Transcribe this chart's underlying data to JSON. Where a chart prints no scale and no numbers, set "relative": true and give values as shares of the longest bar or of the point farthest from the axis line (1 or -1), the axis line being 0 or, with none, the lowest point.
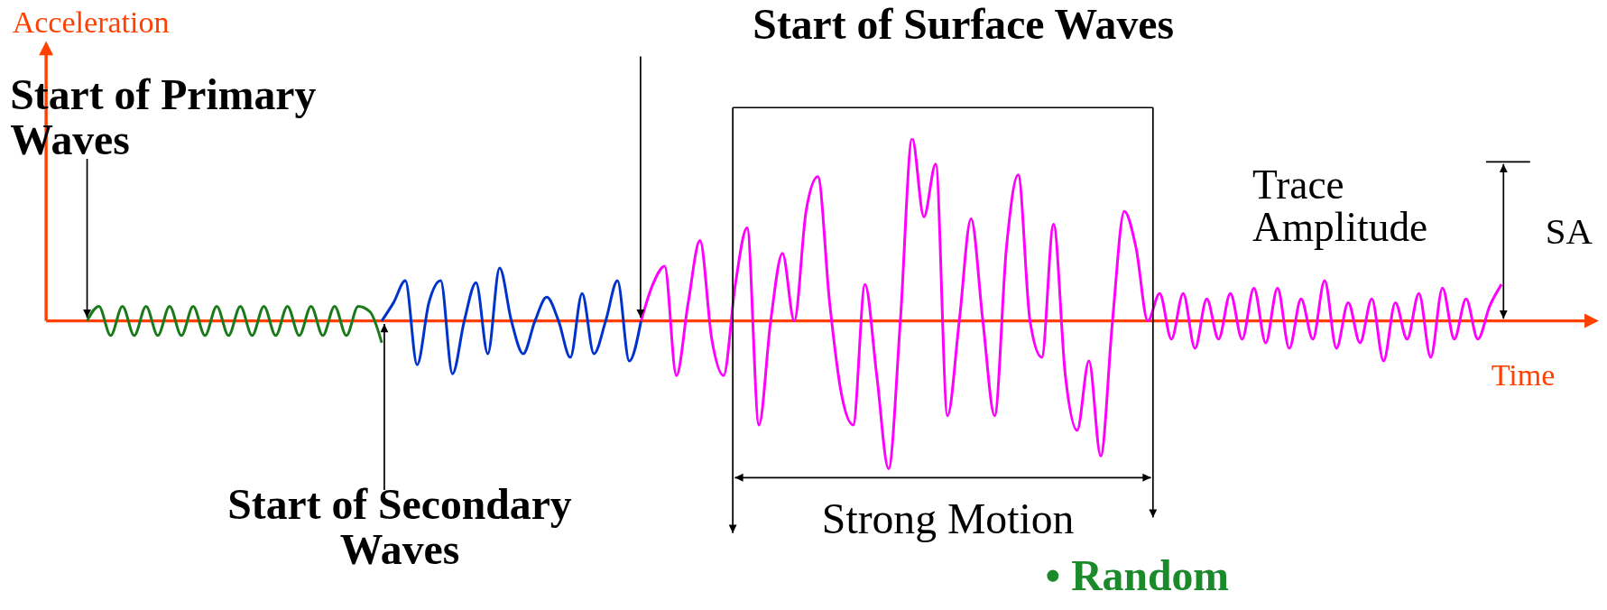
{
  "chart_data": {
    "type": "line",
    "relative": true,
    "xlabel": "Time",
    "ylabel": "Acceleration",
    "marker": "none",
    "ref_lines": [
      {
        "axis": "y",
        "value": 0,
        "color": "#ff4000"
      }
    ],
    "annotations": [
      "Start of Primary Waves",
      "Start of Surface Waves",
      "Start of Secondary Waves",
      "Trace Amplitude",
      "SA",
      "Strong Motion",
      "• Random"
    ],
    "categories": [
      null,
      null,
      null,
      null,
      null,
      null,
      null,
      null,
      null,
      null,
      null,
      null,
      null,
      null,
      null,
      null,
      null,
      null,
      null,
      null,
      null,
      null,
      null,
      null,
      null,
      null,
      null,
      null,
      null,
      null,
      null,
      null,
      null,
      null,
      null,
      null,
      null,
      null,
      null,
      null,
      null,
      null,
      null,
      null,
      null,
      null,
      null,
      null,
      null,
      null,
      null,
      null,
      null,
      null,
      null,
      null,
      null,
      null,
      null,
      null,
      null,
      null,
      null,
      null,
      null,
      null,
      null,
      null,
      null,
      null,
      null,
      null,
      null,
      null,
      null,
      null,
      null,
      null,
      null,
      null,
      null,
      null,
      null,
      null,
      null,
      null,
      null,
      null,
      null,
      null,
      null,
      null,
      null,
      null,
      null,
      null,
      null,
      null,
      null,
      null,
      null,
      null,
      null,
      null,
      null,
      null,
      null,
      null,
      null,
      null,
      null,
      null,
      null,
      null,
      null,
      null,
      null,
      null,
      null,
      null,
      null
    ],
    "series": [
      {
        "color": "#1a7a1a",
        "values": [
          0,
          0.08,
          -0.08,
          0.08,
          -0.08,
          0.08,
          -0.08,
          0.08,
          -0.08,
          0.08,
          -0.08,
          0.08,
          -0.08,
          0.08,
          -0.08,
          0.08,
          -0.08,
          0.08,
          -0.08,
          0.08,
          -0.08,
          0.08,
          -0.08,
          0.08,
          0.05,
          -0.12,
          null,
          null,
          null,
          null,
          null,
          null,
          null,
          null,
          null,
          null,
          null,
          null,
          null,
          null,
          null,
          null,
          null,
          null,
          null,
          null,
          null,
          null,
          null,
          null,
          null,
          null,
          null,
          null,
          null,
          null,
          null,
          null,
          null,
          null,
          null,
          null,
          null,
          null,
          null,
          null,
          null,
          null,
          null,
          null,
          null,
          null,
          null,
          null,
          null,
          null,
          null,
          null,
          null,
          null,
          null,
          null,
          null,
          null,
          null,
          null,
          null,
          null,
          null,
          null,
          null,
          null,
          null,
          null,
          null,
          null,
          null,
          null,
          null,
          null,
          null,
          null,
          null,
          null,
          null,
          null,
          null,
          null,
          null,
          null,
          null,
          null,
          null,
          null,
          null,
          null,
          null,
          null,
          null,
          null,
          null
        ]
      },
      {
        "color": "#0033cc",
        "values": [
          null,
          null,
          null,
          null,
          null,
          null,
          null,
          null,
          null,
          null,
          null,
          null,
          null,
          null,
          null,
          null,
          null,
          null,
          null,
          null,
          null,
          null,
          null,
          null,
          null,
          0,
          0.1,
          0.22,
          -0.24,
          0.1,
          0.22,
          -0.29,
          0,
          0.21,
          -0.18,
          0.29,
          0,
          -0.18,
          0,
          0.13,
          0,
          -0.2,
          0.15,
          -0.18,
          0,
          0.22,
          -0.22,
          0,
          null,
          null,
          null,
          null,
          null,
          null,
          null,
          null,
          null,
          null,
          null,
          null,
          null,
          null,
          null,
          null,
          null,
          null,
          null,
          null,
          null,
          null,
          null,
          null,
          null,
          null,
          null,
          null,
          null,
          null,
          null,
          null,
          null,
          null,
          null,
          null,
          null,
          null,
          null,
          null,
          null,
          null,
          null,
          null,
          null,
          null,
          null,
          null,
          null,
          null,
          null,
          null,
          null,
          null,
          null,
          null,
          null,
          null,
          null,
          null,
          null,
          null,
          null,
          null,
          null,
          null,
          null,
          null,
          null,
          null,
          null,
          null,
          null
        ]
      },
      {
        "color": "#ff00ff",
        "values": [
          null,
          null,
          null,
          null,
          null,
          null,
          null,
          null,
          null,
          null,
          null,
          null,
          null,
          null,
          null,
          null,
          null,
          null,
          null,
          null,
          null,
          null,
          null,
          null,
          null,
          null,
          null,
          null,
          null,
          null,
          null,
          null,
          null,
          null,
          null,
          null,
          null,
          null,
          null,
          null,
          null,
          null,
          null,
          null,
          null,
          null,
          null,
          0,
          0.2,
          0.3,
          -0.3,
          0.1,
          0.44,
          -0.1,
          -0.3,
          0.2,
          0.51,
          -0.57,
          0,
          0.37,
          0,
          0.6,
          0.79,
          0.1,
          -0.4,
          -0.57,
          0.2,
          -0.3,
          -0.81,
          0,
          1,
          0.57,
          0.86,
          -0.52,
          0,
          0.56,
          0,
          -0.52,
          0.4,
          0.8,
          0,
          -0.2,
          0.53,
          -0.3,
          -0.6,
          -0.22,
          -0.74,
          0,
          0.6,
          0.4,
          0,
          0.15,
          -0.1,
          0.15,
          -0.15,
          0.12,
          -0.1,
          0.15,
          -0.1,
          0.18,
          -0.12,
          0.18,
          -0.15,
          0.12,
          -0.1,
          0.22,
          -0.15,
          0.1,
          -0.12,
          0.12,
          -0.22,
          0.1,
          -0.1,
          0.15,
          -0.2,
          0.18,
          -0.1,
          0.12,
          -0.1,
          0.08,
          0.2
        ]
      }
    ]
  }
}
